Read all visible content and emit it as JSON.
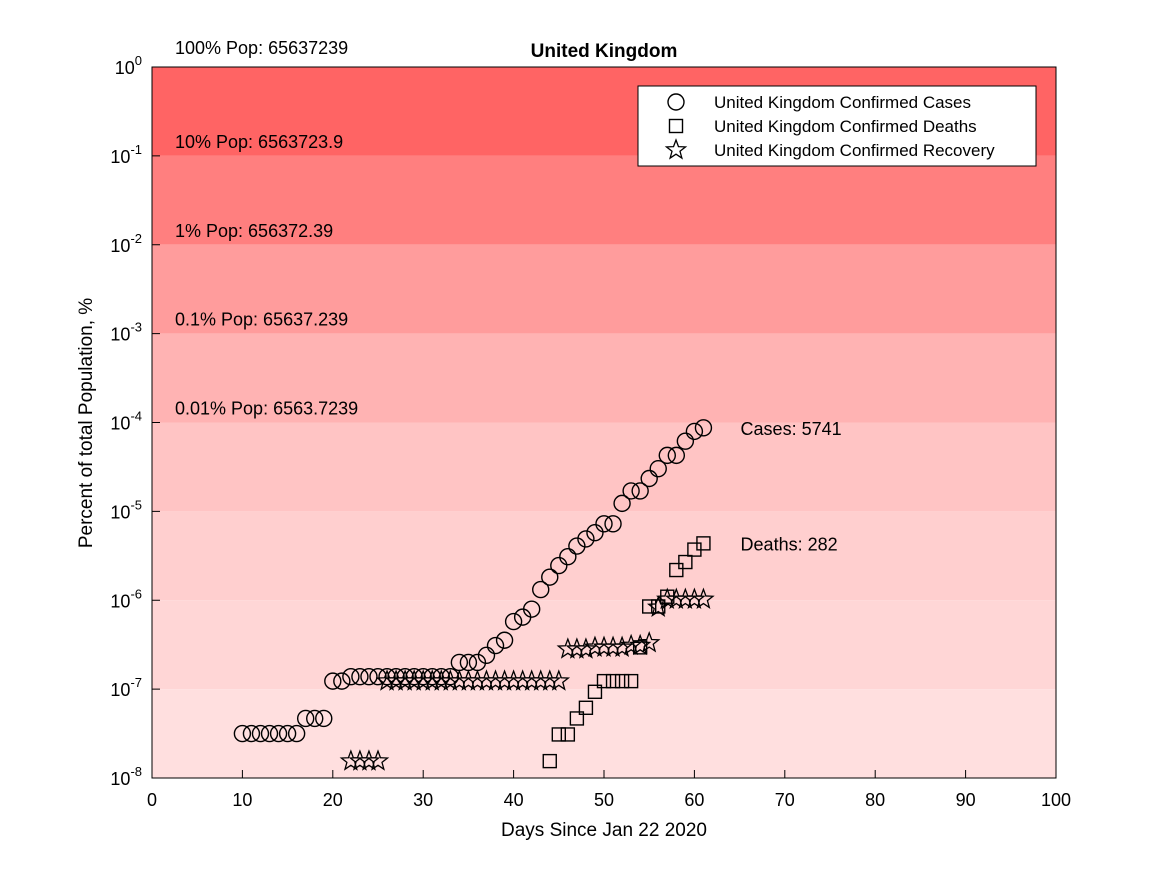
{
  "chart_data": {
    "type": "scatter",
    "title": "United Kingdom",
    "xlabel": "Days Since Jan 22 2020",
    "ylabel": "Percent of total Population, %",
    "xlim": [
      0,
      100
    ],
    "ylim_log10": [
      -8,
      0
    ],
    "y_scale": "log",
    "grid": false,
    "legend_position": "top-right",
    "x_ticks": [
      0,
      10,
      20,
      30,
      40,
      50,
      60,
      70,
      80,
      90,
      100
    ],
    "y_ticks": [
      {
        "base": "10",
        "exp": "0",
        "log": 0
      },
      {
        "base": "10",
        "exp": "-1",
        "log": -1
      },
      {
        "base": "10",
        "exp": "-2",
        "log": -2
      },
      {
        "base": "10",
        "exp": "-3",
        "log": -3
      },
      {
        "base": "10",
        "exp": "-4",
        "log": -4
      },
      {
        "base": "10",
        "exp": "-5",
        "log": -5
      },
      {
        "base": "10",
        "exp": "-6",
        "log": -6
      },
      {
        "base": "10",
        "exp": "-7",
        "log": -7
      },
      {
        "base": "10",
        "exp": "-8",
        "log": -8
      }
    ],
    "bands": [
      {
        "label": "100% Pop: 65637239",
        "from": -1,
        "to": 0,
        "color": "#ff6464"
      },
      {
        "label": "10% Pop: 6563723.9",
        "from": -2,
        "to": -1,
        "color": "#ff7f7f"
      },
      {
        "label": "1% Pop: 656372.39",
        "from": -3,
        "to": -2,
        "color": "#ff9c9c"
      },
      {
        "label": "0.1% Pop: 65637.239",
        "from": -4,
        "to": -3,
        "color": "#ffb3b3"
      },
      {
        "label": "0.01% Pop: 6563.7239",
        "from": -5,
        "to": -4,
        "color": "#ffc4c4"
      },
      {
        "band_no_label": true,
        "from": -6,
        "to": -5,
        "color": "#ffcfcf"
      },
      {
        "band_no_label": true,
        "from": -7,
        "to": -6,
        "color": "#ffd6d6"
      },
      {
        "band_no_label": true,
        "from": -8,
        "to": -7,
        "color": "#ffdfdf"
      }
    ],
    "series": [
      {
        "name": "United Kingdom Confirmed Cases",
        "marker": "circle",
        "points": [
          [
            10,
            -7.5
          ],
          [
            11,
            -7.5
          ],
          [
            12,
            -7.5
          ],
          [
            13,
            -7.5
          ],
          [
            14,
            -7.5
          ],
          [
            15,
            -7.5
          ],
          [
            16,
            -7.5
          ],
          [
            17,
            -7.33
          ],
          [
            18,
            -7.33
          ],
          [
            19,
            -7.33
          ],
          [
            20,
            -6.91
          ],
          [
            21,
            -6.91
          ],
          [
            22,
            -6.86
          ],
          [
            23,
            -6.86
          ],
          [
            24,
            -6.86
          ],
          [
            25,
            -6.86
          ],
          [
            26,
            -6.86
          ],
          [
            27,
            -6.86
          ],
          [
            28,
            -6.86
          ],
          [
            29,
            -6.86
          ],
          [
            30,
            -6.86
          ],
          [
            31,
            -6.86
          ],
          [
            32,
            -6.86
          ],
          [
            33,
            -6.86
          ],
          [
            34,
            -6.7
          ],
          [
            35,
            -6.7
          ],
          [
            36,
            -6.7
          ],
          [
            37,
            -6.62
          ],
          [
            38,
            -6.51
          ],
          [
            39,
            -6.45
          ],
          [
            40,
            -6.24
          ],
          [
            41,
            -6.19
          ],
          [
            42,
            -6.1
          ],
          [
            43,
            -5.88
          ],
          [
            44,
            -5.74
          ],
          [
            45,
            -5.61
          ],
          [
            46,
            -5.51
          ],
          [
            47,
            -5.39
          ],
          [
            48,
            -5.31
          ],
          [
            49,
            -5.24
          ],
          [
            50,
            -5.14
          ],
          [
            51,
            -5.14
          ],
          [
            52,
            -4.91
          ],
          [
            53,
            -4.77
          ],
          [
            54,
            -4.77
          ],
          [
            55,
            -4.63
          ],
          [
            56,
            -4.52
          ],
          [
            57,
            -4.37
          ],
          [
            58,
            -4.37
          ],
          [
            59,
            -4.21
          ],
          [
            60,
            -4.1
          ],
          [
            61,
            -4.06
          ]
        ]
      },
      {
        "name": "United Kingdom Confirmed Deaths",
        "marker": "square",
        "points": [
          [
            44,
            -7.81
          ],
          [
            45,
            -7.51
          ],
          [
            46,
            -7.51
          ],
          [
            47,
            -7.33
          ],
          [
            48,
            -7.21
          ],
          [
            49,
            -7.03
          ],
          [
            50,
            -6.91
          ],
          [
            51,
            -6.91
          ],
          [
            52,
            -6.91
          ],
          [
            53,
            -6.91
          ],
          [
            54,
            -6.53
          ],
          [
            55,
            -6.07
          ],
          [
            56,
            -6.07
          ],
          [
            57,
            -5.96
          ],
          [
            58,
            -5.66
          ],
          [
            59,
            -5.57
          ],
          [
            60,
            -5.43
          ],
          [
            61,
            -5.36
          ]
        ]
      },
      {
        "name": "United Kingdom Confirmed Recovery",
        "marker": "star",
        "points": [
          [
            22,
            -7.81
          ],
          [
            23,
            -7.81
          ],
          [
            24,
            -7.81
          ],
          [
            25,
            -7.81
          ],
          [
            26,
            -6.91
          ],
          [
            27,
            -6.91
          ],
          [
            28,
            -6.91
          ],
          [
            29,
            -6.91
          ],
          [
            30,
            -6.91
          ],
          [
            31,
            -6.91
          ],
          [
            32,
            -6.91
          ],
          [
            33,
            -6.91
          ],
          [
            34,
            -6.91
          ],
          [
            35,
            -6.91
          ],
          [
            36,
            -6.91
          ],
          [
            37,
            -6.91
          ],
          [
            38,
            -6.91
          ],
          [
            39,
            -6.91
          ],
          [
            40,
            -6.91
          ],
          [
            41,
            -6.91
          ],
          [
            42,
            -6.91
          ],
          [
            43,
            -6.91
          ],
          [
            44,
            -6.91
          ],
          [
            45,
            -6.91
          ],
          [
            46,
            -6.55
          ],
          [
            47,
            -6.55
          ],
          [
            48,
            -6.55
          ],
          [
            49,
            -6.53
          ],
          [
            50,
            -6.53
          ],
          [
            51,
            -6.53
          ],
          [
            52,
            -6.53
          ],
          [
            53,
            -6.51
          ],
          [
            54,
            -6.51
          ],
          [
            55,
            -6.48
          ],
          [
            56,
            -6.08
          ],
          [
            57,
            -5.99
          ],
          [
            58,
            -5.99
          ],
          [
            59,
            -5.99
          ],
          [
            60,
            -5.99
          ],
          [
            61,
            -5.99
          ]
        ]
      }
    ],
    "annotations": [
      {
        "text": "Cases: 5741",
        "x": 64,
        "y": -4.06
      },
      {
        "text": "Deaths: 282",
        "x": 64,
        "y": -5.36
      }
    ]
  }
}
